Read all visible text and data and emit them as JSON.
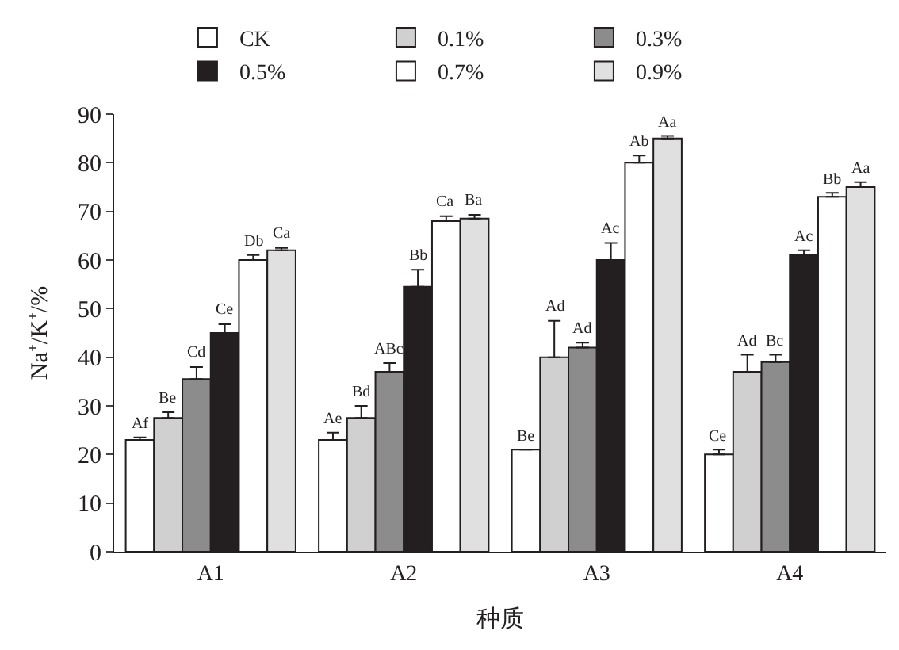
{
  "chart_data": {
    "type": "bar",
    "xlabel": "种质",
    "ylabel": "Na⁺/K⁺/%",
    "categories": [
      "A1",
      "A2",
      "A3",
      "A4"
    ],
    "ylim": [
      0,
      90
    ],
    "yticks": [
      0,
      10,
      20,
      30,
      40,
      50,
      60,
      70,
      80,
      90
    ],
    "grid": false,
    "legend": "top",
    "series": [
      {
        "name": "CK",
        "color": "#ffffff",
        "values": [
          23,
          23,
          21,
          20
        ],
        "errors": [
          0.5,
          1.5,
          null,
          1
        ],
        "value_labels": [
          "Af",
          "Ae",
          "Be",
          "Ce"
        ]
      },
      {
        "name": "0.1%",
        "color": "#d0d0d0",
        "values": [
          27.5,
          27.5,
          40,
          37
        ],
        "errors": [
          1.2,
          2.5,
          7.5,
          3.5
        ],
        "value_labels": [
          "Be",
          "Bd",
          "Ad",
          "Ad"
        ]
      },
      {
        "name": "0.3%",
        "color": "#8c8c8c",
        "values": [
          35.5,
          37,
          42,
          39
        ],
        "errors": [
          2.5,
          1.8,
          1,
          1.5
        ],
        "value_labels": [
          "Cd",
          "ABc",
          "Ad",
          "Bc"
        ]
      },
      {
        "name": "0.5%",
        "color": "#231f20",
        "values": [
          45,
          54.5,
          60,
          61
        ],
        "errors": [
          1.8,
          3.5,
          3.5,
          1
        ],
        "value_labels": [
          "Ce",
          "Bb",
          "Ac",
          "Ac"
        ]
      },
      {
        "name": "0.7%",
        "color": "#ffffff",
        "values": [
          60,
          68,
          80,
          73
        ],
        "errors": [
          1,
          1,
          1.5,
          0.8
        ],
        "value_labels": [
          "Db",
          "Ca",
          "Ab",
          "Bb"
        ]
      },
      {
        "name": "0.9%",
        "color": "#e0e0e0",
        "values": [
          62,
          68.5,
          85,
          75
        ],
        "errors": [
          0.5,
          0.8,
          0.5,
          1
        ],
        "value_labels": [
          "Ca",
          "Ba",
          "Aa",
          "Aa"
        ]
      }
    ]
  }
}
